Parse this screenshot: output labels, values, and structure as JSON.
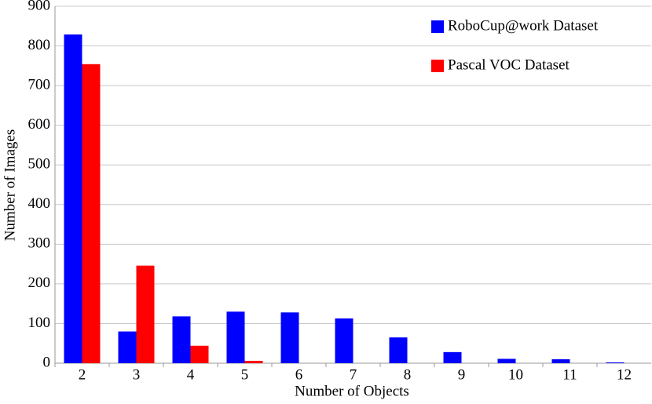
{
  "chart_data": {
    "type": "bar",
    "x_label": "Number of Objects",
    "y_label": "Number of Images",
    "categories": [
      "2",
      "3",
      "4",
      "5",
      "6",
      "7",
      "8",
      "9",
      "10",
      "11",
      "12"
    ],
    "series": [
      {
        "name": "RoboCup@work Dataset",
        "color": "#0000ff",
        "values": [
          829,
          80,
          118,
          130,
          128,
          113,
          65,
          28,
          11,
          10,
          2
        ]
      },
      {
        "name": "Pascal VOC Dataset",
        "color": "#ff0000",
        "values": [
          754,
          246,
          44,
          6,
          0,
          0,
          0,
          0,
          0,
          0,
          0
        ]
      }
    ],
    "ylim": [
      0,
      900
    ],
    "yticks": [
      0,
      100,
      200,
      300,
      400,
      500,
      600,
      700,
      800,
      900
    ],
    "grid": true,
    "legend": "upper-right"
  }
}
